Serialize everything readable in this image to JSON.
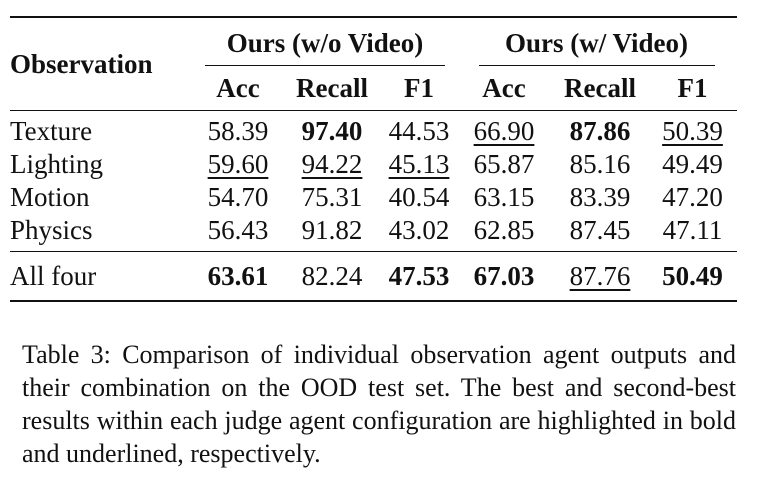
{
  "table": {
    "observation_header": "Observation",
    "groups": [
      "Ours (w/o Video)",
      "Ours (w/ Video)"
    ],
    "columns": [
      "Acc",
      "Recall",
      "F1",
      "Acc",
      "Recall",
      "F1"
    ],
    "rows": [
      {
        "label": "Texture",
        "values": [
          "58.39",
          "97.40",
          "44.53",
          "66.90",
          "87.86",
          "50.39"
        ],
        "styles": [
          "",
          "bold",
          "",
          "underline",
          "bold",
          "underline"
        ]
      },
      {
        "label": "Lighting",
        "values": [
          "59.60",
          "94.22",
          "45.13",
          "65.87",
          "85.16",
          "49.49"
        ],
        "styles": [
          "underline",
          "underline",
          "underline",
          "",
          "",
          ""
        ]
      },
      {
        "label": "Motion",
        "values": [
          "54.70",
          "75.31",
          "40.54",
          "63.15",
          "83.39",
          "47.20"
        ],
        "styles": [
          "",
          "",
          "",
          "",
          "",
          ""
        ]
      },
      {
        "label": "Physics",
        "values": [
          "56.43",
          "91.82",
          "43.02",
          "62.85",
          "87.45",
          "47.11"
        ],
        "styles": [
          "",
          "",
          "",
          "",
          "",
          ""
        ]
      },
      {
        "label": "All four",
        "values": [
          "63.61",
          "82.24",
          "47.53",
          "67.03",
          "87.76",
          "50.49"
        ],
        "styles": [
          "bold",
          "",
          "bold",
          "bold",
          "underline",
          "bold"
        ]
      }
    ]
  },
  "caption": "Table 3: Comparison of individual observation agent outputs and their combination on the OOD test set. The best and second-best results within each judge agent configuration are highlighted in bold and underlined, respectively."
}
